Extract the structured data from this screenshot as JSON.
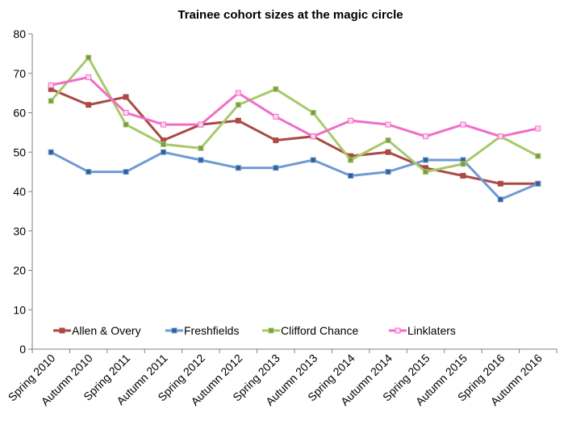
{
  "chart_data": {
    "type": "line",
    "title": "Trainee cohort sizes at the magic circle",
    "xlabel": "",
    "ylabel": "",
    "ylim": [
      0,
      80
    ],
    "y_ticks": [
      0,
      10,
      20,
      30,
      40,
      50,
      60,
      70,
      80
    ],
    "grid": false,
    "legend_position": "bottom-inside",
    "categories": [
      "Spring 2010",
      "Autumn 2010",
      "Spring 2011",
      "Autumn 2011",
      "Spring 2012",
      "Autumn 2012",
      "Spring 2013",
      "Autumn 2013",
      "Spring 2014",
      "Autumn 2014",
      "Spring 2015",
      "Autumn 2015",
      "Spring 2016",
      "Autumn 2016"
    ],
    "series": [
      {
        "name": "Allen & Overy",
        "color": "#a94a46",
        "marker_fill": "#a94a46",
        "values": [
          66,
          62,
          64,
          53,
          57,
          58,
          53,
          54,
          49,
          50,
          46,
          44,
          42,
          42
        ]
      },
      {
        "name": "Freshfields",
        "color": "#6f9ad2",
        "marker_fill": "#2f5f96",
        "values": [
          50,
          45,
          45,
          50,
          48,
          46,
          46,
          48,
          44,
          45,
          48,
          48,
          38,
          42
        ]
      },
      {
        "name": "Clifford Chance",
        "color": "#a8c96a",
        "marker_fill": "#7d9a45",
        "values": [
          63,
          74,
          57,
          52,
          51,
          62,
          66,
          60,
          48,
          53,
          45,
          47,
          54,
          49
        ]
      },
      {
        "name": "Linklaters",
        "color": "#f06ec8",
        "marker_fill": "#ffd6f0",
        "values": [
          67,
          69,
          60,
          57,
          57,
          65,
          59,
          54,
          58,
          57,
          54,
          57,
          54,
          56
        ]
      }
    ]
  }
}
